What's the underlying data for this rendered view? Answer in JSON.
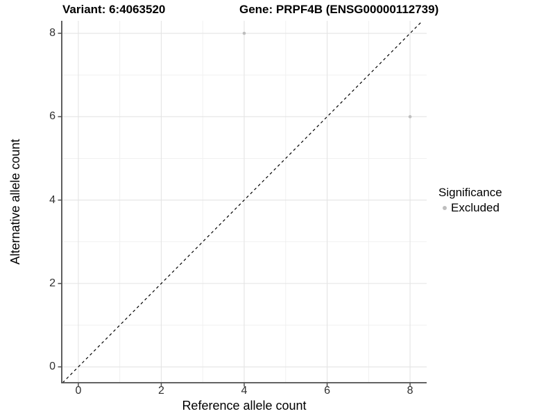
{
  "chart_data": {
    "type": "scatter",
    "titles": {
      "left": "Variant: 6:4063520",
      "right": "Gene: PRPF4B (ENSG00000112739)"
    },
    "xlabel": "Reference allele count",
    "ylabel": "Alternative allele count",
    "xlim": [
      -0.4,
      8.4
    ],
    "ylim": [
      -0.38,
      8.3
    ],
    "x_ticks": [
      0,
      2,
      4,
      6,
      8
    ],
    "y_ticks": [
      0,
      2,
      4,
      6,
      8
    ],
    "x_minor_gridlines": [
      1,
      3,
      5,
      7
    ],
    "y_minor_gridlines": [
      1,
      3,
      5,
      7
    ],
    "grid": true,
    "legend_position": "right",
    "series": [
      {
        "name": "Excluded",
        "color": "#bebebe",
        "points": [
          {
            "x": 4,
            "y": 8
          },
          {
            "x": 8,
            "y": 6
          }
        ]
      }
    ],
    "reference_line": {
      "type": "identity",
      "style": "dashed",
      "color": "#000000"
    },
    "legend": {
      "title": "Significance",
      "items": [
        {
          "label": "Excluded",
          "color": "#bebebe"
        }
      ]
    },
    "colors": {
      "background": "#ffffff",
      "grid_major": "#e4e4e4",
      "grid_minor": "#efefef",
      "axis_line": "#4d4d4d",
      "tick_text": "#303030",
      "title_text": "#000000",
      "point": "#bebebe"
    }
  }
}
